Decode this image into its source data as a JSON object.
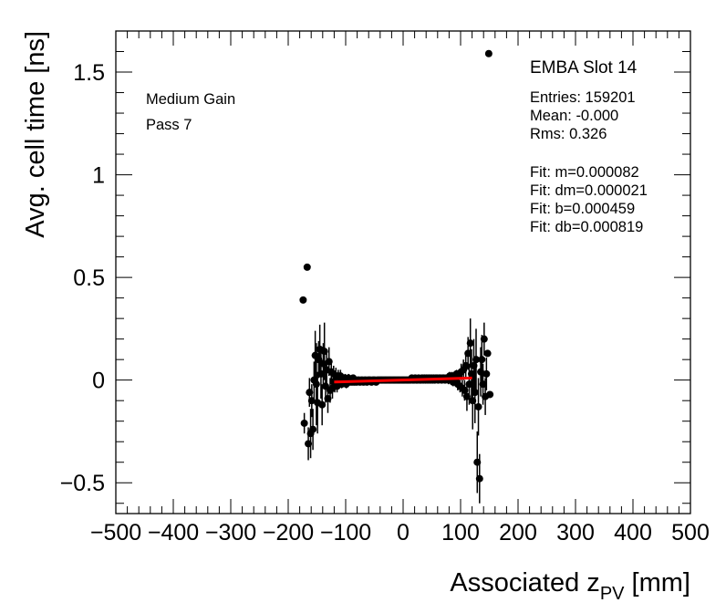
{
  "chart_data": {
    "type": "scatter",
    "title": "",
    "xlabel_main": "Associated z",
    "xlabel_sub": "PV",
    "xlabel_unit": " [mm]",
    "ylabel": "Avg. cell time [ns]",
    "xlim": [
      -500,
      500
    ],
    "ylim": [
      -0.65,
      1.7
    ],
    "grid": false,
    "x_ticks": [
      -500,
      -400,
      -300,
      -200,
      -100,
      0,
      100,
      200,
      300,
      400,
      500
    ],
    "x_tick_labels": [
      "−500",
      "−400",
      "−300",
      "−200",
      "−100",
      "0",
      "100",
      "200",
      "300",
      "400",
      "500"
    ],
    "y_ticks": [
      -0.5,
      0,
      0.5,
      1,
      1.5
    ],
    "y_tick_labels": [
      "−0.5",
      "0",
      "0.5",
      "1",
      "1.5"
    ],
    "annotations_left": [
      "Medium Gain",
      "Pass 7"
    ],
    "stats": {
      "title": "EMBA Slot 14",
      "lines": [
        "Entries: 159201",
        "Mean: -0.000",
        "Rms: 0.326"
      ],
      "fit_lines": [
        "Fit: m=0.000082",
        "Fit: dm=0.000021",
        "Fit: b=0.000459",
        "Fit: db=0.000819"
      ]
    },
    "fit": {
      "m": 8.2e-05,
      "b": 0.000459,
      "x_range": [
        -120,
        120
      ],
      "color": "#ff0000"
    },
    "marker_color": "#000000",
    "series": [
      {
        "points": [
          [
            -174,
            0.39,
            0
          ],
          [
            -172,
            -0.21,
            0.05
          ],
          [
            -167,
            0.55,
            0
          ],
          [
            -165,
            -0.31,
            0.08
          ],
          [
            -163,
            -0.06,
            0.07
          ],
          [
            -161,
            -0.26,
            0.12
          ],
          [
            -159,
            -0.1,
            0.08
          ],
          [
            -157,
            -0.24,
            0.1
          ],
          [
            -155,
            0.0,
            0.09
          ],
          [
            -153,
            0.12,
            0.12
          ],
          [
            -151,
            -0.02,
            0.2
          ],
          [
            -149,
            -0.11,
            0.15
          ],
          [
            -147,
            0.1,
            0.09
          ],
          [
            -145,
            0.15,
            0.12
          ],
          [
            -143,
            0.03,
            0.12
          ],
          [
            -141,
            -0.12,
            0.1
          ],
          [
            -139,
            0.08,
            0.1
          ],
          [
            -137,
            0.14,
            0.14
          ],
          [
            -135,
            -0.03,
            0.08
          ],
          [
            -133,
            0.05,
            0.08
          ],
          [
            -131,
            -0.09,
            0.07
          ],
          [
            -129,
            0.09,
            0.07
          ],
          [
            -127,
            -0.05,
            0.06
          ],
          [
            -125,
            0.04,
            0.06
          ],
          [
            -123,
            -0.04,
            0.05
          ],
          [
            -121,
            0.03,
            0.04
          ],
          [
            -119,
            -0.02,
            0.04
          ],
          [
            -117,
            0.02,
            0.04
          ],
          [
            -115,
            -0.03,
            0.03
          ],
          [
            -113,
            0.02,
            0.03
          ],
          [
            -111,
            -0.01,
            0.03
          ],
          [
            -109,
            0.02,
            0.03
          ],
          [
            -107,
            -0.02,
            0.02
          ],
          [
            -105,
            0.01,
            0.02
          ],
          [
            -103,
            -0.01,
            0.02
          ],
          [
            -101,
            0.01,
            0.02
          ],
          [
            -99,
            -0.02,
            0.02
          ],
          [
            -97,
            0.0,
            0.02
          ],
          [
            -95,
            0.01,
            0.02
          ],
          [
            -93,
            -0.01,
            0.01
          ],
          [
            -91,
            0.0,
            0.01
          ],
          [
            -89,
            -0.01,
            0.01
          ],
          [
            -87,
            0.01,
            0.01
          ],
          [
            -85,
            -0.01,
            0.01
          ],
          [
            -83,
            0.0,
            0.01
          ],
          [
            -81,
            -0.01,
            0.01
          ],
          [
            -79,
            0.0,
            0.01
          ],
          [
            -77,
            0.0,
            0.01
          ],
          [
            -75,
            -0.01,
            0.01
          ],
          [
            -73,
            0.0,
            0.01
          ],
          [
            -71,
            0.0,
            0.01
          ],
          [
            -69,
            -0.01,
            0.01
          ],
          [
            -67,
            0.0,
            0.01
          ],
          [
            -65,
            0.0,
            0.01
          ],
          [
            -63,
            -0.01,
            0.01
          ],
          [
            -61,
            0.0,
            0.01
          ],
          [
            -59,
            0.0,
            0.01
          ],
          [
            -57,
            0.0,
            0.01
          ],
          [
            -55,
            -0.01,
            0.01
          ],
          [
            -53,
            0.0,
            0.01
          ],
          [
            -51,
            0.0,
            0.01
          ],
          [
            -49,
            0.0,
            0.01
          ],
          [
            -47,
            -0.01,
            0.01
          ],
          [
            -45,
            0.0,
            0.01
          ],
          [
            -43,
            0.0,
            0.01
          ],
          [
            -41,
            0.0,
            0.01
          ],
          [
            -39,
            0.0,
            0.01
          ],
          [
            -37,
            0.0,
            0.01
          ],
          [
            -35,
            0.0,
            0.01
          ],
          [
            -33,
            0.0,
            0.01
          ],
          [
            -31,
            0.0,
            0.01
          ],
          [
            -29,
            0.0,
            0.01
          ],
          [
            -27,
            0.0,
            0.01
          ],
          [
            -25,
            0.0,
            0.01
          ],
          [
            -23,
            0.0,
            0.01
          ],
          [
            -21,
            0.0,
            0.01
          ],
          [
            -19,
            0.0,
            0.01
          ],
          [
            -17,
            0.0,
            0.01
          ],
          [
            -15,
            0.0,
            0.01
          ],
          [
            -13,
            0.0,
            0.01
          ],
          [
            -11,
            0.0,
            0.01
          ],
          [
            -9,
            0.0,
            0.01
          ],
          [
            -7,
            0.0,
            0.01
          ],
          [
            -5,
            0.0,
            0.01
          ],
          [
            -3,
            0.0,
            0.01
          ],
          [
            -1,
            0.0,
            0.01
          ],
          [
            1,
            0.0,
            0.01
          ],
          [
            3,
            0.0,
            0.01
          ],
          [
            5,
            0.0,
            0.01
          ],
          [
            7,
            0.0,
            0.01
          ],
          [
            9,
            0.0,
            0.01
          ],
          [
            11,
            0.0,
            0.01
          ],
          [
            13,
            0.0,
            0.01
          ],
          [
            15,
            0.01,
            0.01
          ],
          [
            17,
            0.0,
            0.01
          ],
          [
            19,
            0.0,
            0.01
          ],
          [
            21,
            0.01,
            0.01
          ],
          [
            23,
            0.0,
            0.01
          ],
          [
            25,
            0.0,
            0.01
          ],
          [
            27,
            0.01,
            0.01
          ],
          [
            29,
            0.0,
            0.01
          ],
          [
            31,
            0.0,
            0.01
          ],
          [
            33,
            0.01,
            0.01
          ],
          [
            35,
            0.0,
            0.01
          ],
          [
            37,
            0.01,
            0.01
          ],
          [
            39,
            0.0,
            0.01
          ],
          [
            41,
            0.01,
            0.01
          ],
          [
            43,
            0.0,
            0.01
          ],
          [
            45,
            0.01,
            0.01
          ],
          [
            47,
            0.0,
            0.01
          ],
          [
            49,
            0.01,
            0.01
          ],
          [
            51,
            0.0,
            0.01
          ],
          [
            53,
            0.01,
            0.01
          ],
          [
            55,
            0.0,
            0.01
          ],
          [
            57,
            0.01,
            0.01
          ],
          [
            59,
            0.01,
            0.01
          ],
          [
            61,
            0.0,
            0.01
          ],
          [
            63,
            0.01,
            0.01
          ],
          [
            65,
            0.01,
            0.01
          ],
          [
            67,
            0.0,
            0.01
          ],
          [
            69,
            0.01,
            0.01
          ],
          [
            71,
            0.01,
            0.01
          ],
          [
            73,
            0.0,
            0.01
          ],
          [
            75,
            0.01,
            0.01
          ],
          [
            77,
            0.01,
            0.01
          ],
          [
            79,
            0.0,
            0.02
          ],
          [
            81,
            0.02,
            0.02
          ],
          [
            83,
            0.0,
            0.02
          ],
          [
            85,
            0.02,
            0.02
          ],
          [
            87,
            -0.01,
            0.02
          ],
          [
            89,
            0.02,
            0.02
          ],
          [
            91,
            -0.01,
            0.02
          ],
          [
            93,
            0.03,
            0.02
          ],
          [
            95,
            -0.02,
            0.03
          ],
          [
            97,
            0.02,
            0.03
          ],
          [
            99,
            -0.03,
            0.03
          ],
          [
            101,
            0.04,
            0.04
          ],
          [
            103,
            -0.04,
            0.04
          ],
          [
            105,
            0.05,
            0.05
          ],
          [
            107,
            -0.05,
            0.05
          ],
          [
            109,
            0.07,
            0.06
          ],
          [
            111,
            -0.08,
            0.07
          ],
          [
            113,
            0.13,
            0.08
          ],
          [
            115,
            -0.02,
            0.1
          ],
          [
            117,
            0.18,
            0.12
          ],
          [
            119,
            0.03,
            0.12
          ],
          [
            121,
            -0.1,
            0.14
          ],
          [
            123,
            0.07,
            0.13
          ],
          [
            125,
            -0.06,
            0.15
          ],
          [
            127,
            0.1,
            0.15
          ],
          [
            129,
            -0.4,
            0.15
          ],
          [
            131,
            -0.13,
            0.14
          ],
          [
            133,
            -0.48,
            0.12
          ],
          [
            135,
            0.04,
            0.12
          ],
          [
            137,
            0.1,
            0.12
          ],
          [
            139,
            -0.02,
            0.1
          ],
          [
            141,
            0.2,
            0.08
          ],
          [
            143,
            -0.08,
            0.09
          ],
          [
            145,
            0.03,
            0.08
          ],
          [
            147,
            0.13,
            0
          ],
          [
            149,
            1.59,
            0
          ],
          [
            151,
            -0.07,
            0
          ]
        ]
      }
    ]
  }
}
